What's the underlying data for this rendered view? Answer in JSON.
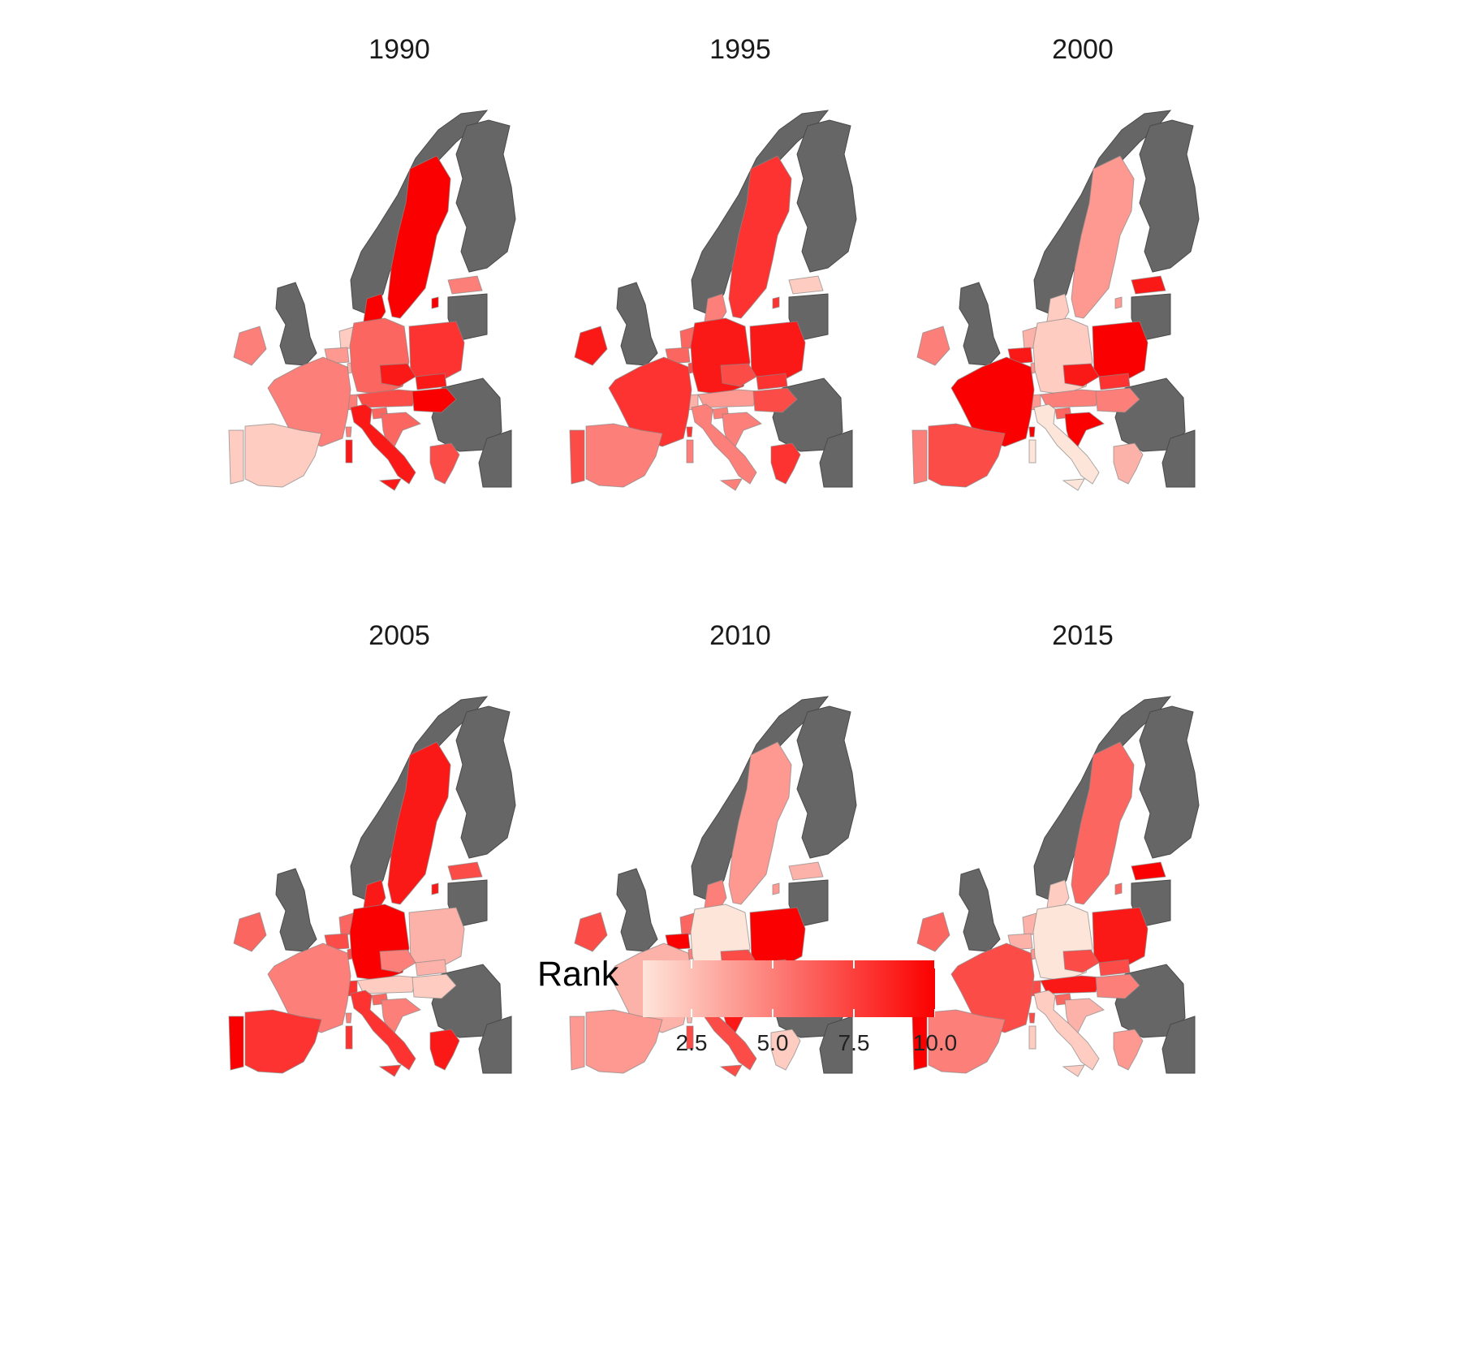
{
  "legend": {
    "title": "Rank",
    "min": 1,
    "max": 10,
    "color_low": "#fee5d9",
    "color_high": "#fb0000",
    "breaks": [
      {
        "value": 2.5,
        "label": "2.5"
      },
      {
        "value": 5.0,
        "label": "5.0"
      },
      {
        "value": 7.5,
        "label": "7.5"
      },
      {
        "value": 10.0,
        "label": "10.0"
      }
    ]
  },
  "colors": {
    "no_data": "#666666",
    "border": "#888888",
    "background": "#ffffff"
  },
  "panels": [
    {
      "title": "1990",
      "ranks": {
        "IE": 5,
        "FR": 5,
        "ES": 2,
        "PT": 2,
        "BE": 4,
        "NL": 2,
        "LU": 3,
        "DE": 6,
        "DK": 10,
        "SE": 10,
        "PL": 8,
        "CZ": 9,
        "AT": 7,
        "CH": 5,
        "IT": 9,
        "HU": 10,
        "SK": 9,
        "SI": 6,
        "HR": 6,
        "GR": 7,
        "EE": 5
      }
    },
    {
      "title": "1995",
      "ranks": {
        "IE": 9,
        "FR": 8,
        "ES": 5,
        "PT": 7,
        "BE": 6,
        "NL": 6,
        "LU": 7,
        "DE": 9,
        "DK": 5,
        "SE": 8,
        "PL": 9,
        "CZ": 7,
        "AT": 4,
        "CH": 3,
        "IT": 5,
        "HU": 7,
        "SK": 8,
        "SI": 5,
        "HR": 5,
        "GR": 8,
        "EE": 2
      }
    },
    {
      "title": "2000",
      "ranks": {
        "IE": 5,
        "FR": 10,
        "ES": 7,
        "PT": 5,
        "BE": 9,
        "NL": 3,
        "LU": 4,
        "DE": 2,
        "DK": 2,
        "SE": 4,
        "PL": 10,
        "CZ": 9,
        "AT": 5,
        "CH": 4,
        "IT": 1,
        "HU": 5,
        "SK": 8,
        "SI": 6,
        "HR": 10,
        "GR": 3,
        "EE": 9
      }
    },
    {
      "title": "2005",
      "ranks": {
        "IE": 6,
        "FR": 5,
        "ES": 8,
        "PT": 10,
        "BE": 7,
        "NL": 6,
        "LU": 7,
        "DE": 10,
        "DK": 9,
        "SE": 9,
        "PL": 3,
        "CZ": 5,
        "AT": 2,
        "CH": 8,
        "IT": 8,
        "HU": 2,
        "SK": 3,
        "SI": 6,
        "HR": 5,
        "GR": 9,
        "EE": 7
      }
    },
    {
      "title": "2010",
      "ranks": {
        "IE": 7,
        "FR": 3,
        "ES": 4,
        "PT": 4,
        "BE": 10,
        "NL": 6,
        "LU": 5,
        "DE": 1,
        "DK": 5,
        "SE": 4,
        "PL": 10,
        "CZ": 7,
        "AT": 10,
        "CH": 9,
        "IT": 7,
        "HU": 7,
        "SK": 8,
        "SI": 9,
        "HR": 9,
        "GR": 2,
        "EE": 3
      }
    },
    {
      "title": "2015",
      "ranks": {
        "IE": 6,
        "FR": 7,
        "ES": 5,
        "PT": 10,
        "BE": 3,
        "NL": 3,
        "LU": 4,
        "DE": 1,
        "DK": 2,
        "SE": 6,
        "PL": 9,
        "CZ": 7,
        "AT": 9,
        "CH": 7,
        "IT": 2,
        "HU": 5,
        "SK": 7,
        "SI": 6,
        "HR": 3,
        "GR": 4,
        "EE": 10
      }
    }
  ]
}
